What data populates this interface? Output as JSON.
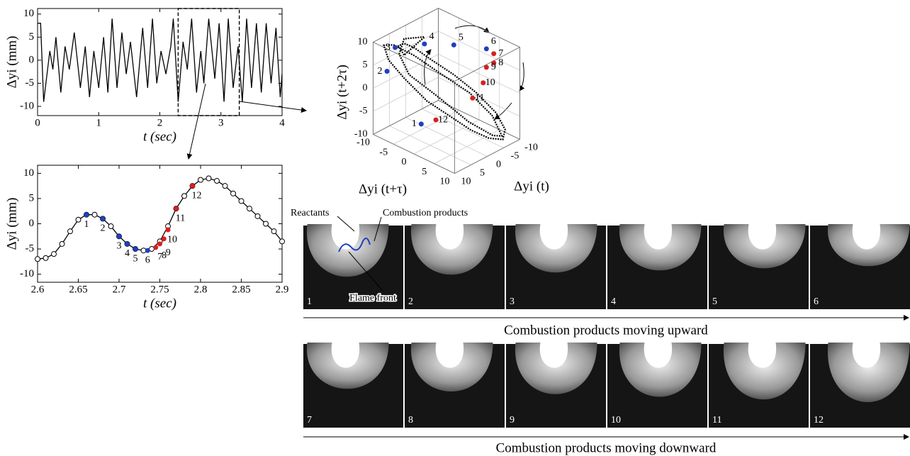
{
  "chart_data": [
    {
      "type": "line",
      "xlabel": "t (sec)",
      "ylabel": "Δyi (mm)",
      "x": [
        0,
        0.05,
        0.1,
        0.2,
        0.25,
        0.3,
        0.38,
        0.45,
        0.52,
        0.6,
        0.7,
        0.78,
        0.85,
        0.92,
        1.0,
        1.08,
        1.15,
        1.22,
        1.3,
        1.38,
        1.45,
        1.52,
        1.62,
        1.72,
        1.8,
        1.88,
        1.95,
        2.02,
        2.1,
        2.18,
        2.22,
        2.3,
        2.38,
        2.45,
        2.52,
        2.6,
        2.67,
        2.72,
        2.8,
        2.9,
        2.97,
        3.05,
        3.12,
        3.2,
        3.28,
        3.35,
        3.42,
        3.5,
        3.58,
        3.66,
        3.74,
        3.82,
        3.9,
        3.97,
        4.0
      ],
      "values": [
        8,
        8,
        -9,
        2,
        -2,
        5,
        -7,
        3,
        -2,
        6,
        -6,
        3,
        -8,
        2,
        -6,
        5,
        -7,
        9,
        -6,
        6,
        -3,
        4,
        -8,
        7,
        -6,
        9,
        -5,
        2,
        -3,
        3,
        9,
        -9,
        4,
        -2,
        9,
        -7,
        2,
        -5,
        9,
        -4,
        8,
        -9,
        9,
        -6,
        3,
        -9,
        9,
        -6,
        8,
        -7,
        8,
        -5,
        7,
        -8,
        -3
      ],
      "color": "#000000",
      "xlim": [
        0,
        4
      ],
      "ylim": [
        -12,
        11.2
      ],
      "xticks": [
        0,
        1,
        2,
        3,
        4
      ],
      "yticks": [
        -10,
        -5,
        0,
        5,
        10
      ],
      "highlight": {
        "xlim": [
          2.3,
          3.3
        ],
        "ylim": [
          -12,
          11.2
        ]
      }
    },
    {
      "type": "line",
      "markers": true,
      "xlabel": "t (sec)",
      "ylabel": "Δyi (mm)",
      "x": [
        2.6,
        2.61,
        2.62,
        2.63,
        2.64,
        2.65,
        2.66,
        2.67,
        2.68,
        2.69,
        2.7,
        2.71,
        2.72,
        2.73,
        2.74,
        2.75,
        2.76,
        2.77,
        2.78,
        2.79,
        2.8,
        2.81,
        2.82,
        2.83,
        2.84,
        2.85,
        2.86,
        2.87,
        2.88,
        2.89,
        2.9
      ],
      "values": [
        -7,
        -6.8,
        -6,
        -4,
        -1.5,
        0.8,
        1.8,
        1.8,
        1,
        -0.5,
        -2.5,
        -4,
        -5,
        -5.3,
        -5,
        -3.5,
        -0.5,
        3,
        5.5,
        7.5,
        8.7,
        9,
        8.5,
        7.5,
        6,
        4.5,
        3,
        1.5,
        0,
        -1.5,
        -3.5
      ],
      "color": "#000000",
      "xlim": [
        2.6,
        2.9
      ],
      "ylim": [
        -11.6,
        11.6
      ],
      "xticks": [
        2.6,
        2.65,
        2.7,
        2.75,
        2.8,
        2.85,
        2.9
      ],
      "yticks": [
        -10,
        -5,
        0,
        5,
        10
      ],
      "points": {
        "labels": [
          "1",
          "2",
          "3",
          "4",
          "5",
          "6",
          "7",
          "8",
          "9",
          "10",
          "11",
          "12"
        ],
        "x": [
          2.66,
          2.68,
          2.7,
          2.71,
          2.72,
          2.735,
          2.745,
          2.75,
          2.755,
          2.76,
          2.77,
          2.79
        ],
        "values": [
          1.8,
          1,
          -2.5,
          -4,
          -5,
          -5.3,
          -4.7,
          -4,
          -3,
          -1.2,
          3,
          7.5
        ],
        "colors": [
          "#1f3fbf",
          "#1f3fbf",
          "#1f3fbf",
          "#1f3fbf",
          "#1f3fbf",
          "#1f3fbf",
          "#d62020",
          "#d62020",
          "#d62020",
          "#d62020",
          "#d62020",
          "#d62020"
        ]
      }
    },
    {
      "type": "scatter3d",
      "xlabel": "Δyi (t)",
      "ylabel": "Δyi (t+τ)",
      "zlabel": "Δyi (t+2τ)",
      "xlim": [
        -10,
        10
      ],
      "ylim": [
        -10,
        10
      ],
      "zlim": [
        -10,
        10
      ],
      "xticks": [
        -10,
        -5,
        0,
        5,
        10
      ],
      "yticks": [
        -10,
        -5,
        0,
        5,
        10
      ],
      "zticks": [
        -10,
        -5,
        0,
        5,
        10
      ],
      "color": "#000000",
      "x": [
        8,
        6,
        3,
        0,
        -3,
        -6,
        -8,
        -9,
        -8,
        -6,
        -3,
        0,
        3,
        6,
        8,
        9,
        8,
        5,
        1,
        -3,
        -7,
        -9,
        -7,
        -3,
        2,
        6,
        9,
        7,
        3,
        -2
      ],
      "y": [
        -4,
        -7,
        -8,
        -8,
        -6,
        -3,
        1,
        5,
        8,
        9,
        8,
        6,
        3,
        0,
        -4,
        -7,
        -9,
        -9,
        -7,
        -4,
        0,
        4,
        8,
        9,
        7,
        3,
        -2,
        -6,
        -8,
        -7
      ],
      "z": [
        9,
        9,
        8,
        6,
        3,
        0,
        -3,
        -6,
        -8,
        -9,
        -8,
        -6,
        -3,
        0,
        4,
        7,
        9,
        8,
        5,
        1,
        -3,
        -7,
        -9,
        -7,
        -3,
        2,
        6,
        8,
        9,
        8
      ],
      "points": {
        "labels": [
          "1",
          "2",
          "3",
          "4",
          "5",
          "6",
          "7",
          "8",
          "9",
          "10",
          "11",
          "12"
        ],
        "x": [
          4,
          7,
          7,
          3,
          -1,
          -6,
          -7,
          -7,
          -6,
          -5,
          -3,
          2
        ],
        "y": [
          -3,
          -9,
          -7,
          -3,
          1,
          5,
          6,
          6,
          5,
          5,
          4,
          -1
        ],
        "z": [
          -7,
          3,
          9,
          10,
          10,
          9,
          8,
          6,
          5,
          2,
          -1,
          -6
        ],
        "colors": [
          "#1f3fbf",
          "#1f3fbf",
          "#1f3fbf",
          "#1f3fbf",
          "#1f3fbf",
          "#1f3fbf",
          "#d62020",
          "#d62020",
          "#d62020",
          "#d62020",
          "#d62020",
          "#d62020"
        ]
      }
    }
  ],
  "figure": {
    "annotations": {
      "reactants": "Reactants",
      "products": "Combustion products",
      "flame_front": "Flame front"
    },
    "frames": [
      "1",
      "2",
      "3",
      "4",
      "5",
      "6",
      "7",
      "8",
      "9",
      "10",
      "11",
      "12"
    ],
    "captions": [
      "Combustion products moving upward",
      "Combustion products moving downward"
    ]
  }
}
